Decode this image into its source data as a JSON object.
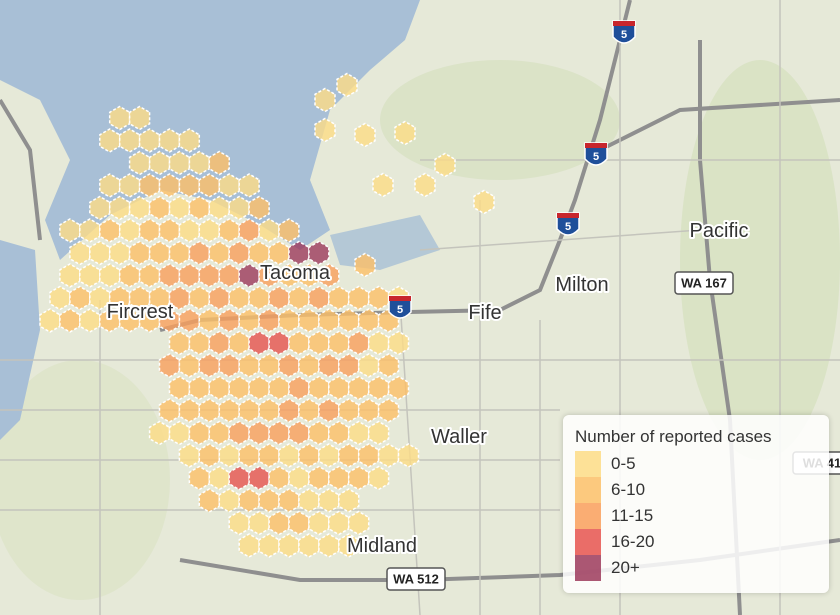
{
  "places": [
    "Fircrest",
    "Tacoma",
    "Fife",
    "Milton",
    "Pacific",
    "Waller",
    "Midland"
  ],
  "shields": [
    "5",
    "5",
    "5",
    "5",
    "WA 167",
    "WA 512",
    "WA 41"
  ],
  "legend": {
    "title": "Number of reported cases",
    "items": [
      {
        "label": "0-5",
        "color": "#fddc86"
      },
      {
        "label": "6-10",
        "color": "#fcbf68"
      },
      {
        "label": "11-15",
        "color": "#f99f5c"
      },
      {
        "label": "16-20",
        "color": "#e6534f"
      },
      {
        "label": "20+",
        "color": "#9c3a5c"
      }
    ]
  }
}
